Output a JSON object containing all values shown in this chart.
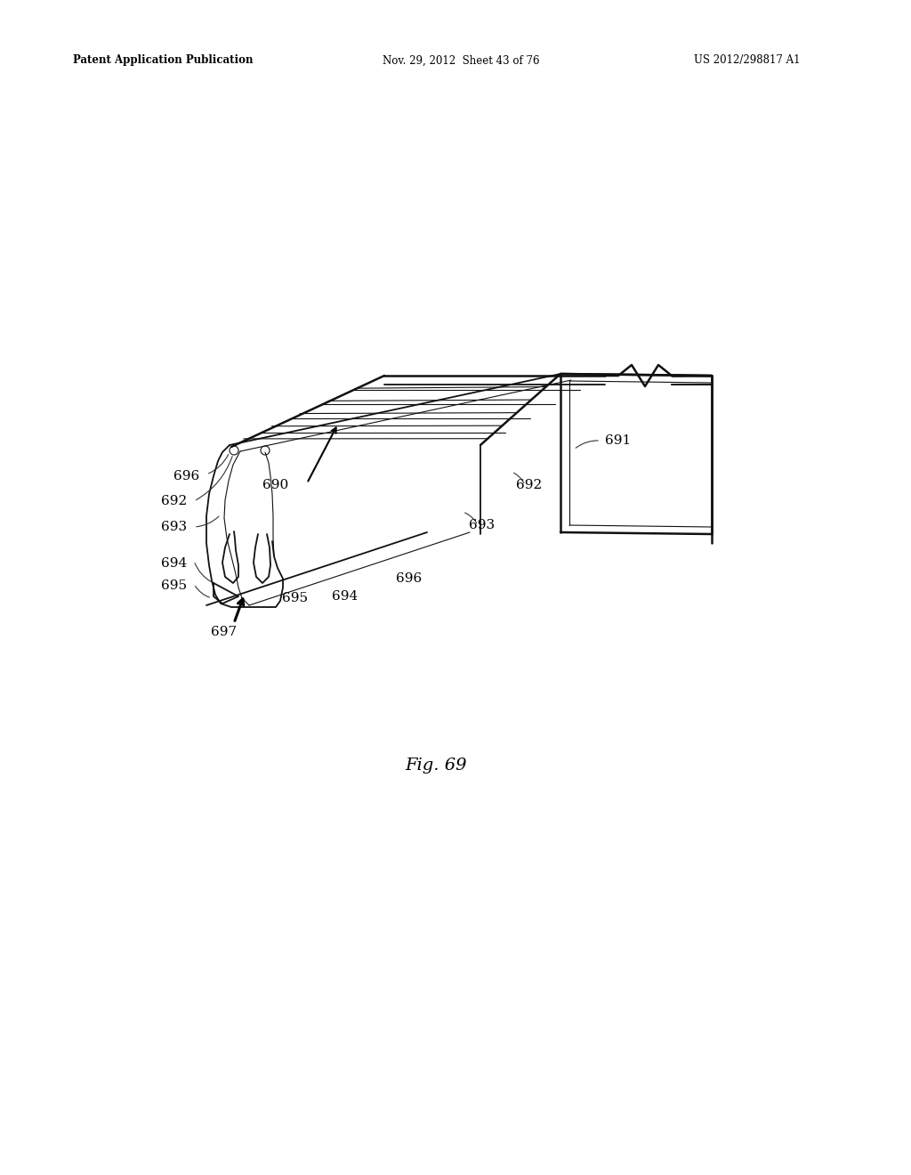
{
  "header_left": "Patent Application Publication",
  "header_center": "Nov. 29, 2012  Sheet 43 of 76",
  "header_right": "US 2012/298817 A1",
  "figure_label": "Fig. 69",
  "background_color": "#ffffff"
}
